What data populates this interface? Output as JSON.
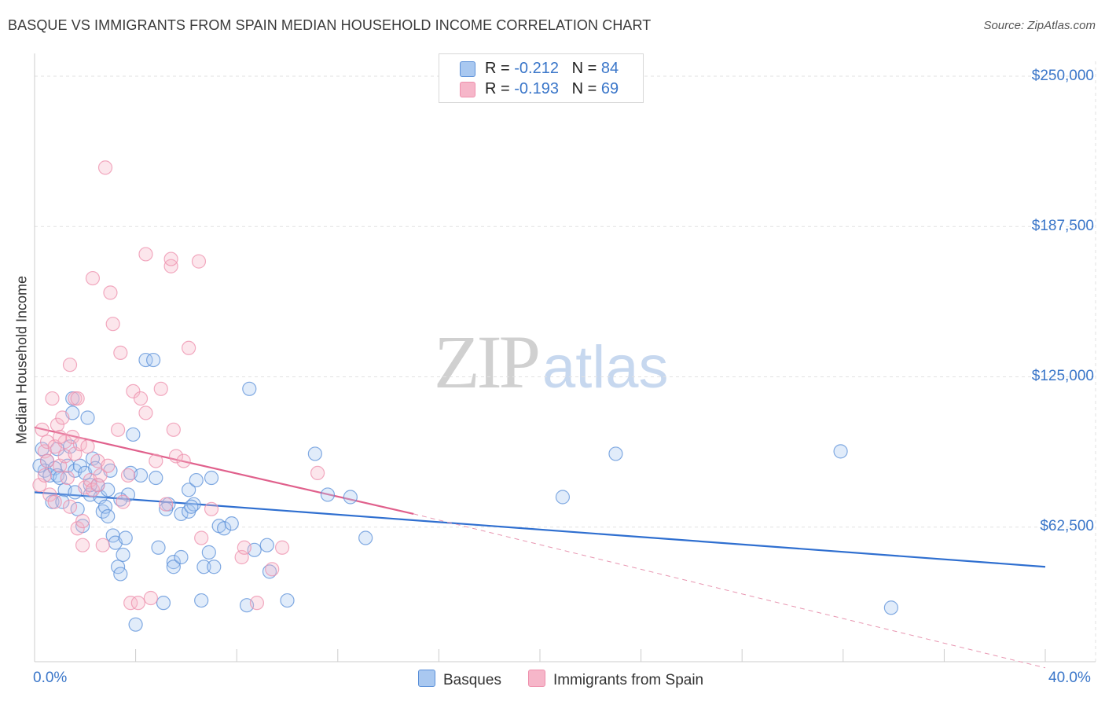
{
  "header": {
    "title": "BASQUE VS IMMIGRANTS FROM SPAIN MEDIAN HOUSEHOLD INCOME CORRELATION CHART",
    "source": "Source: ZipAtlas.com"
  },
  "watermark": {
    "zip": "ZIP",
    "atlas": "atlas"
  },
  "stats_legend": [
    {
      "r_label": "R = ",
      "r_value": "-0.212",
      "n_label": "N = ",
      "n_value": "84",
      "color": "#a9c8f0"
    },
    {
      "r_label": "R = ",
      "r_value": "-0.193",
      "n_label": "N = ",
      "n_value": "69",
      "color": "#f6b6c9"
    }
  ],
  "bottom_legend": [
    {
      "label": "Basques",
      "color": "#a9c8f0"
    },
    {
      "label": "Immigrants from Spain",
      "color": "#f6b6c9"
    }
  ],
  "chart_data": {
    "type": "scatter",
    "title": "BASQUE VS IMMIGRANTS FROM SPAIN MEDIAN HOUSEHOLD INCOME CORRELATION CHART",
    "xlabel": "",
    "ylabel": "Median Household Income",
    "xlim": [
      0,
      40
    ],
    "ylim": [
      0,
      250000
    ],
    "x_tick_labels": [
      "0.0%",
      "40.0%"
    ],
    "y_ticks": [
      62500,
      125000,
      187500,
      250000
    ],
    "y_tick_labels": [
      "$62,500",
      "$125,000",
      "$187,500",
      "$250,000"
    ],
    "grid": true,
    "legend_position": "top-center",
    "series": [
      {
        "name": "Basques",
        "color": "#5a8fd8",
        "trend": {
          "x": [
            0,
            40
          ],
          "y": [
            77000,
            46000
          ],
          "color": "#2f6fd0"
        },
        "points": [
          [
            0.3,
            95000
          ],
          [
            0.5,
            90000
          ],
          [
            0.4,
            86000
          ],
          [
            0.6,
            84000
          ],
          [
            0.8,
            87000
          ],
          [
            0.9,
            84000
          ],
          [
            0.7,
            73000
          ],
          [
            1.0,
            83000
          ],
          [
            1.2,
            78000
          ],
          [
            1.3,
            88000
          ],
          [
            1.4,
            96000
          ],
          [
            1.5,
            110000
          ],
          [
            1.5,
            116000
          ],
          [
            1.6,
            86000
          ],
          [
            1.6,
            77000
          ],
          [
            1.8,
            88000
          ],
          [
            1.9,
            63000
          ],
          [
            2.0,
            85000
          ],
          [
            2.1,
            108000
          ],
          [
            2.2,
            76000
          ],
          [
            2.3,
            91000
          ],
          [
            2.4,
            87000
          ],
          [
            2.5,
            80000
          ],
          [
            2.6,
            75000
          ],
          [
            2.7,
            69000
          ],
          [
            2.8,
            71000
          ],
          [
            2.9,
            78000
          ],
          [
            3.0,
            86000
          ],
          [
            3.1,
            59000
          ],
          [
            3.2,
            56000
          ],
          [
            3.3,
            46000
          ],
          [
            3.4,
            43000
          ],
          [
            3.5,
            51000
          ],
          [
            3.6,
            58000
          ],
          [
            3.7,
            76000
          ],
          [
            3.8,
            85000
          ],
          [
            3.9,
            101000
          ],
          [
            4.0,
            22000
          ],
          [
            4.4,
            132000
          ],
          [
            4.7,
            132000
          ],
          [
            4.8,
            83000
          ],
          [
            4.9,
            54000
          ],
          [
            5.1,
            31000
          ],
          [
            5.3,
            72000
          ],
          [
            5.5,
            48000
          ],
          [
            5.5,
            46000
          ],
          [
            5.8,
            50000
          ],
          [
            5.8,
            68000
          ],
          [
            6.1,
            69000
          ],
          [
            6.1,
            78000
          ],
          [
            6.3,
            72000
          ],
          [
            6.4,
            82000
          ],
          [
            6.6,
            32000
          ],
          [
            6.7,
            46000
          ],
          [
            6.9,
            52000
          ],
          [
            7.0,
            83000
          ],
          [
            7.1,
            46000
          ],
          [
            7.3,
            63000
          ],
          [
            7.5,
            62000
          ],
          [
            7.8,
            64000
          ],
          [
            8.4,
            30000
          ],
          [
            8.5,
            120000
          ],
          [
            8.7,
            53000
          ],
          [
            9.2,
            55000
          ],
          [
            9.3,
            44000
          ],
          [
            10.0,
            32000
          ],
          [
            11.1,
            93000
          ],
          [
            11.6,
            76000
          ],
          [
            12.5,
            75000
          ],
          [
            13.1,
            58000
          ],
          [
            20.9,
            75000
          ],
          [
            23.0,
            93000
          ],
          [
            31.9,
            94000
          ],
          [
            33.9,
            29000
          ],
          [
            0.2,
            88000
          ],
          [
            1.1,
            73000
          ],
          [
            2.2,
            80000
          ],
          [
            3.4,
            74000
          ],
          [
            5.2,
            70000
          ],
          [
            4.2,
            84000
          ],
          [
            6.2,
            71000
          ],
          [
            1.7,
            70000
          ],
          [
            0.9,
            95000
          ],
          [
            2.9,
            67000
          ]
        ]
      },
      {
        "name": "Immigrants from Spain",
        "color": "#ee8fac",
        "trend": {
          "x": [
            0,
            15
          ],
          "y": [
            104000,
            68000
          ],
          "color": "#e0608c"
        },
        "trend_dashed": {
          "x": [
            15,
            40
          ],
          "y": [
            68000,
            4000
          ],
          "color": "#e896b1"
        },
        "points": [
          [
            0.2,
            80000
          ],
          [
            0.3,
            103000
          ],
          [
            0.4,
            94000
          ],
          [
            0.5,
            98000
          ],
          [
            0.5,
            90000
          ],
          [
            0.6,
            76000
          ],
          [
            0.7,
            116000
          ],
          [
            0.8,
            96000
          ],
          [
            0.9,
            105000
          ],
          [
            1.0,
            88000
          ],
          [
            1.1,
            108000
          ],
          [
            1.2,
            98000
          ],
          [
            1.2,
            92000
          ],
          [
            1.3,
            83000
          ],
          [
            1.4,
            71000
          ],
          [
            1.4,
            130000
          ],
          [
            1.5,
            100000
          ],
          [
            1.6,
            93000
          ],
          [
            1.6,
            116000
          ],
          [
            1.7,
            116000
          ],
          [
            1.7,
            62000
          ],
          [
            1.8,
            97000
          ],
          [
            1.9,
            65000
          ],
          [
            1.9,
            55000
          ],
          [
            2.0,
            79000
          ],
          [
            2.1,
            96000
          ],
          [
            2.2,
            82000
          ],
          [
            2.3,
            78000
          ],
          [
            2.3,
            166000
          ],
          [
            2.5,
            80000
          ],
          [
            2.5,
            90000
          ],
          [
            2.6,
            84000
          ],
          [
            2.7,
            55000
          ],
          [
            2.8,
            212000
          ],
          [
            2.9,
            88000
          ],
          [
            3.0,
            160000
          ],
          [
            3.1,
            147000
          ],
          [
            3.3,
            103000
          ],
          [
            3.4,
            135000
          ],
          [
            3.5,
            73000
          ],
          [
            3.7,
            84000
          ],
          [
            3.8,
            31000
          ],
          [
            3.9,
            119000
          ],
          [
            4.1,
            31000
          ],
          [
            4.2,
            116000
          ],
          [
            4.4,
            176000
          ],
          [
            4.4,
            110000
          ],
          [
            4.6,
            33000
          ],
          [
            4.8,
            90000
          ],
          [
            5.0,
            120000
          ],
          [
            5.2,
            72000
          ],
          [
            5.4,
            171000
          ],
          [
            5.4,
            174000
          ],
          [
            5.5,
            103000
          ],
          [
            5.6,
            92000
          ],
          [
            5.9,
            90000
          ],
          [
            6.1,
            137000
          ],
          [
            6.5,
            173000
          ],
          [
            6.6,
            58000
          ],
          [
            7.0,
            70000
          ],
          [
            8.2,
            50000
          ],
          [
            8.3,
            54000
          ],
          [
            8.8,
            31000
          ],
          [
            9.4,
            45000
          ],
          [
            9.8,
            54000
          ],
          [
            11.2,
            85000
          ],
          [
            0.4,
            84000
          ],
          [
            1.0,
            100000
          ],
          [
            0.8,
            73000
          ]
        ]
      }
    ]
  }
}
